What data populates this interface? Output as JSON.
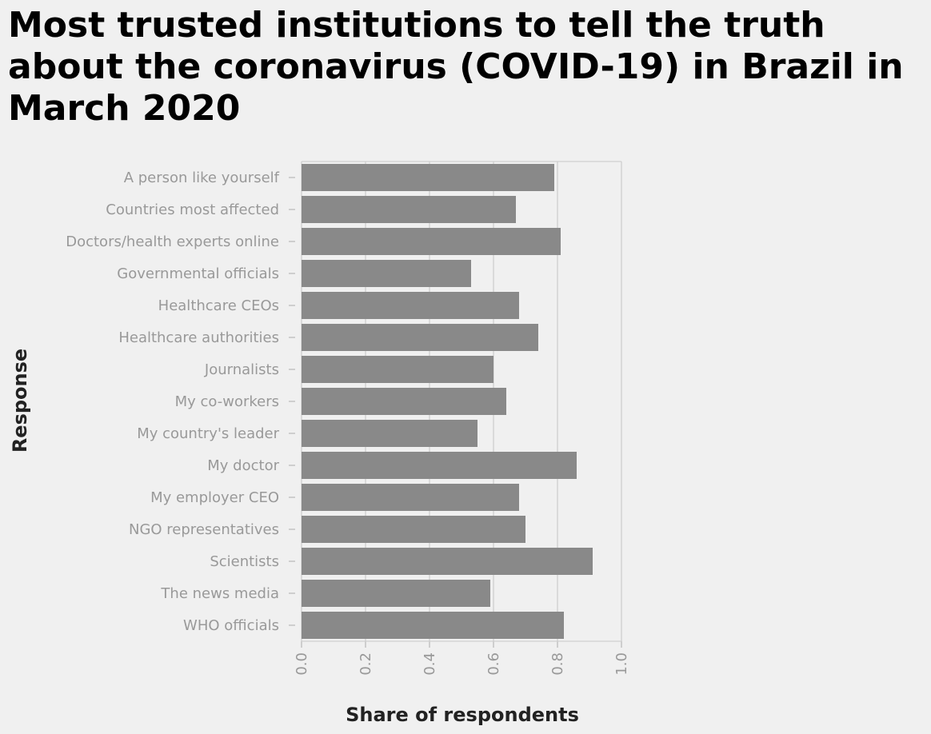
{
  "chart_data": {
    "type": "bar",
    "orientation": "horizontal",
    "title": "Most trusted institutions to tell the truth about the coronavirus (COVID-19) in Brazil in March 2020",
    "xlabel": "Share of respondents",
    "ylabel": "Response",
    "xlim": [
      0,
      1.0
    ],
    "x_ticks": [
      "0.0",
      "0.2",
      "0.4",
      "0.6",
      "0.8",
      "1.0"
    ],
    "grid": "vertical",
    "bar_color": "#898989",
    "categories": [
      "A person like yourself",
      "Countries most affected",
      "Doctors/health experts online",
      "Governmental officials",
      "Healthcare CEOs",
      "Healthcare authorities",
      "Journalists",
      "My co-workers",
      "My country's leader",
      "My doctor",
      "My employer CEO",
      "NGO representatives",
      "Scientists",
      "The news media",
      "WHO officials"
    ],
    "values": [
      0.79,
      0.67,
      0.81,
      0.53,
      0.68,
      0.74,
      0.6,
      0.64,
      0.55,
      0.86,
      0.68,
      0.7,
      0.91,
      0.59,
      0.82
    ]
  }
}
